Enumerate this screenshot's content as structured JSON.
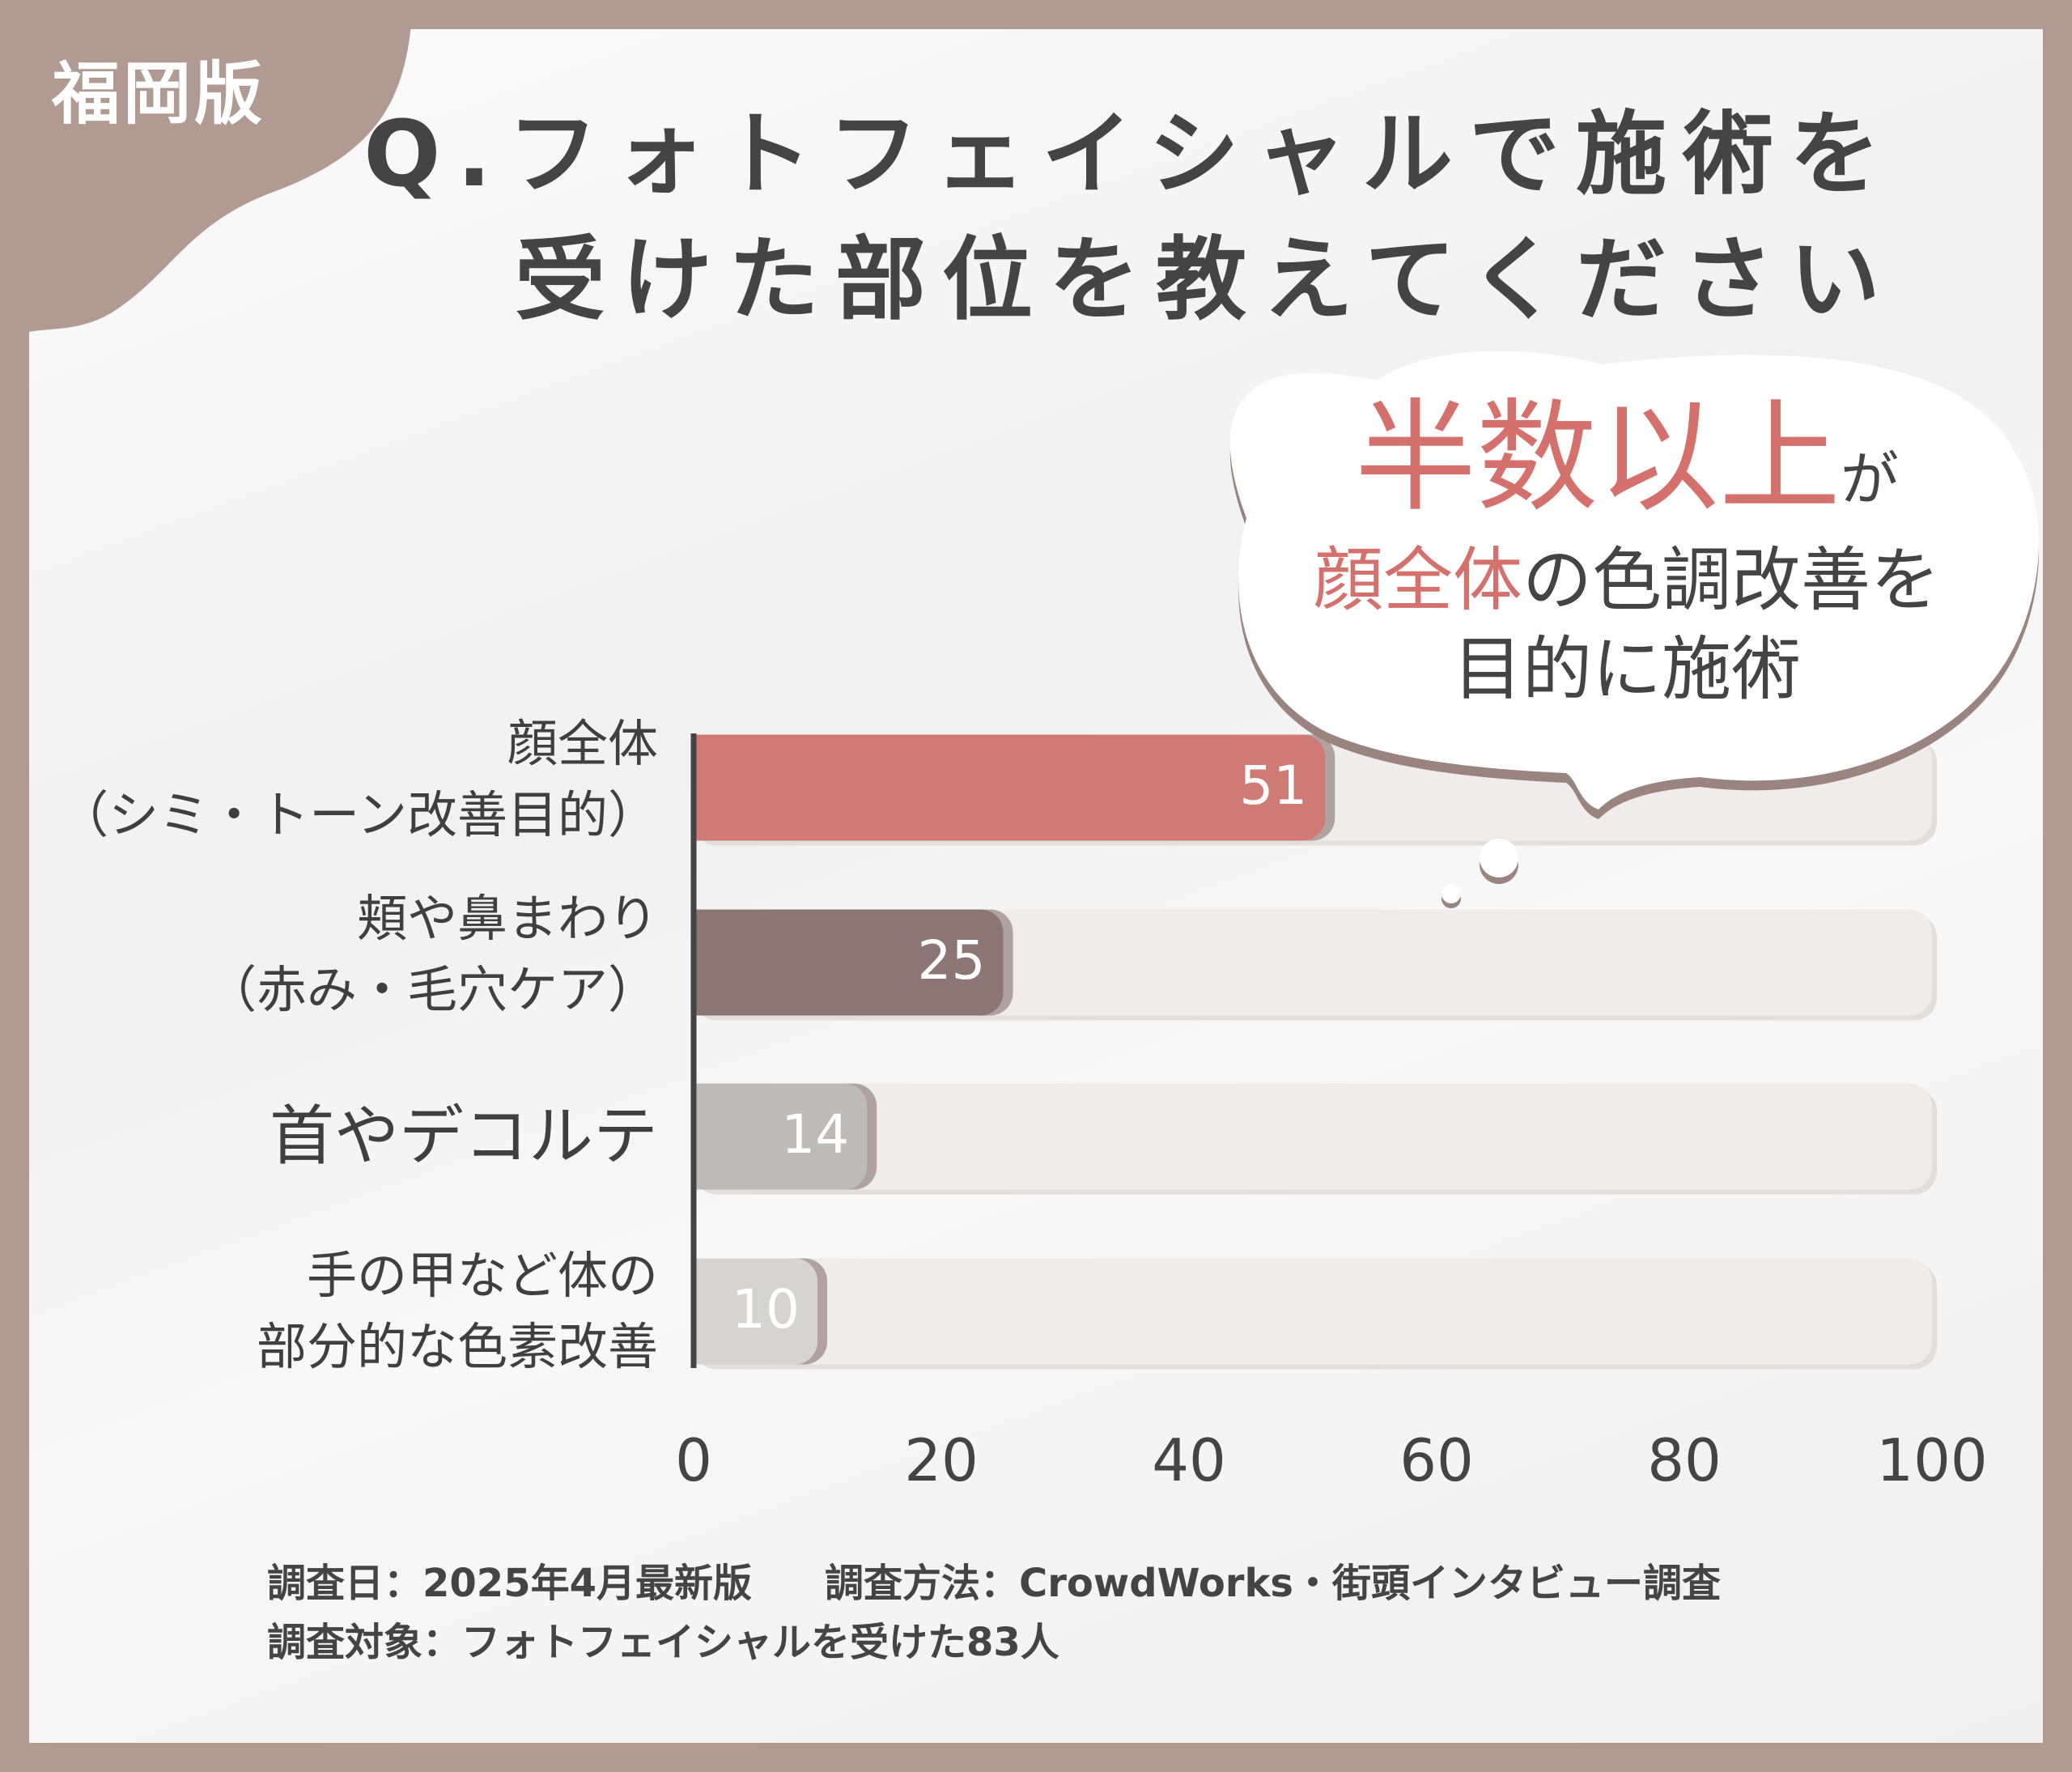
{
  "region_badge": "福岡版",
  "title": {
    "line1": "Q.フォトフェイシャルで施術を",
    "line2": "受けた部位を教えてください"
  },
  "callout": {
    "headline": "半数以上",
    "headline_suffix": "が",
    "line2_highlight": "顔全体",
    "line2_rest": "の色調改善を",
    "line3": "目的に施術"
  },
  "chart_data": {
    "type": "bar",
    "orientation": "horizontal",
    "categories": [
      [
        "顔全体",
        "（シミ・トーン改善目的）"
      ],
      [
        "頬や鼻まわり",
        "（赤み・毛穴ケア）"
      ],
      [
        "首やデコルテ"
      ],
      [
        "手の甲など体の",
        "部分的な色素改善"
      ]
    ],
    "values": [
      51,
      25,
      14,
      10
    ],
    "value_labels": [
      "51",
      "25",
      "14",
      "10"
    ],
    "xlim": [
      0,
      100
    ],
    "xticks": [
      "0",
      "20",
      "40",
      "60",
      "80",
      "100"
    ],
    "grid": false,
    "colors": [
      "#cf7a74",
      "#8c7674",
      "#bdbab9",
      "#d6d3d3"
    ],
    "track_color": "#efeceb"
  },
  "footer": {
    "date": "調査日：2025年4月最新版",
    "method": "調査方法：CrowdWorks・街頭インタビュー調査",
    "subjects": "調査対象：フォトフェイシャルを受けた83人"
  },
  "colors": {
    "frame": "#b09a92",
    "accent": "#d4716c",
    "text": "#444444"
  }
}
